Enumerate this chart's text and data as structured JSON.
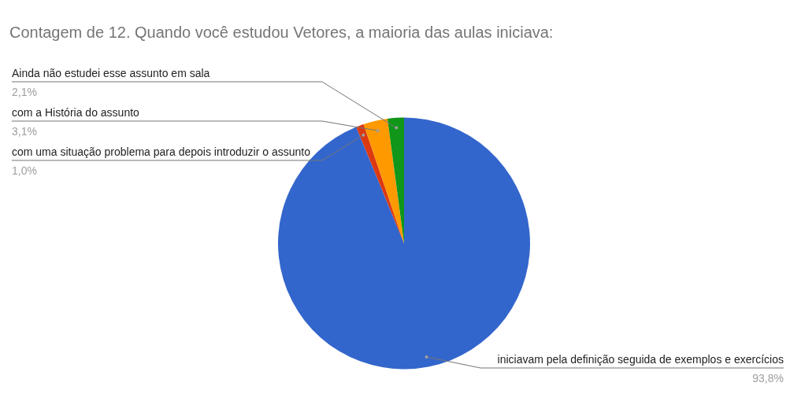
{
  "chart_data": {
    "type": "pie",
    "title": "Contagem de 12. Quando você estudou Vetores, a maioria das aulas iniciava:",
    "categories": [
      "iniciavam pela definição seguida de exemplos e exercícios",
      "com uma situação problema para depois introduzir o assunto",
      "com a História do assunto",
      "Ainda não estudei esse assunto em sala"
    ],
    "values": [
      93.8,
      1.0,
      3.1,
      2.1
    ],
    "colors": [
      "#3366cc",
      "#dc3912",
      "#ff9900",
      "#109618"
    ],
    "value_labels": [
      "93,8%",
      "1,0%",
      "3,1%",
      "2,1%"
    ],
    "legend": false
  }
}
